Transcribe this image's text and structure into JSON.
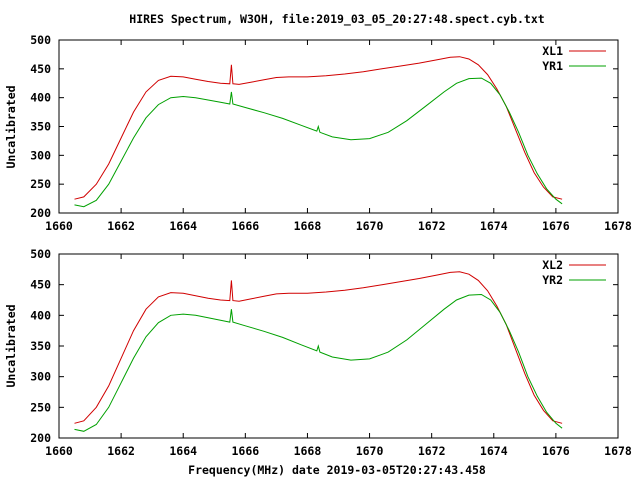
{
  "figure": {
    "title": "HIRES Spectrum, W3OH, file:2019_03_05_20:27:48.spect.cyb.txt",
    "xlabel": "Frequency(MHz) date 2019-03-05T20:27:43.458",
    "colors": {
      "xl": "#d00000",
      "yr": "#00a000"
    }
  },
  "chart_data": [
    {
      "type": "line",
      "ylabel": "Uncalibrated",
      "xlim": [
        1660,
        1678
      ],
      "ylim": [
        200,
        500
      ],
      "xticks": [
        "1660",
        "1662",
        "1664",
        "1666",
        "1668",
        "1670",
        "1672",
        "1674",
        "1676",
        "1678"
      ],
      "yticks": [
        "200",
        "250",
        "300",
        "350",
        "400",
        "450",
        "500"
      ],
      "legend_position": "top-right",
      "series": [
        {
          "name": "XL1",
          "x": [
            1660.5,
            1660.8,
            1661.2,
            1661.6,
            1662.0,
            1662.4,
            1662.8,
            1663.2,
            1663.6,
            1664.0,
            1664.4,
            1664.8,
            1665.2,
            1665.5,
            1665.55,
            1665.6,
            1665.8,
            1666.2,
            1666.6,
            1667.0,
            1667.4,
            1668.0,
            1668.6,
            1669.2,
            1669.8,
            1670.4,
            1671.0,
            1671.6,
            1672.2,
            1672.6,
            1672.9,
            1673.2,
            1673.5,
            1673.8,
            1674.1,
            1674.4,
            1674.7,
            1675.0,
            1675.3,
            1675.6,
            1675.9,
            1676.2
          ],
          "values": [
            224,
            228,
            250,
            285,
            330,
            375,
            410,
            430,
            437,
            436,
            432,
            428,
            425,
            424,
            457,
            424,
            423,
            427,
            431,
            435,
            436,
            436,
            438,
            441,
            445,
            450,
            455,
            460,
            466,
            470,
            471,
            467,
            457,
            440,
            415,
            385,
            345,
            305,
            270,
            245,
            228,
            224
          ]
        },
        {
          "name": "YR1",
          "x": [
            1660.5,
            1660.8,
            1661.2,
            1661.6,
            1662.0,
            1662.4,
            1662.8,
            1663.2,
            1663.6,
            1664.0,
            1664.4,
            1664.8,
            1665.2,
            1665.5,
            1665.55,
            1665.6,
            1666.0,
            1666.6,
            1667.2,
            1667.8,
            1668.3,
            1668.35,
            1668.4,
            1668.8,
            1669.4,
            1670.0,
            1670.6,
            1671.2,
            1671.8,
            1672.4,
            1672.8,
            1673.2,
            1673.6,
            1673.9,
            1674.2,
            1674.5,
            1674.8,
            1675.1,
            1675.4,
            1675.7,
            1676.0,
            1676.2
          ],
          "values": [
            214,
            211,
            222,
            250,
            290,
            330,
            365,
            388,
            400,
            402,
            400,
            396,
            392,
            389,
            410,
            389,
            383,
            374,
            364,
            352,
            342,
            350,
            340,
            332,
            327,
            329,
            340,
            360,
            385,
            410,
            425,
            433,
            434,
            425,
            405,
            375,
            340,
            300,
            268,
            242,
            224,
            216
          ]
        }
      ]
    },
    {
      "type": "line",
      "ylabel": "Uncalibrated",
      "xlim": [
        1660,
        1678
      ],
      "ylim": [
        200,
        500
      ],
      "xticks": [
        "1660",
        "1662",
        "1664",
        "1666",
        "1668",
        "1670",
        "1672",
        "1674",
        "1676",
        "1678"
      ],
      "yticks": [
        "200",
        "250",
        "300",
        "350",
        "400",
        "450",
        "500"
      ],
      "legend_position": "top-right",
      "series": [
        {
          "name": "XL2",
          "x": [
            1660.5,
            1660.8,
            1661.2,
            1661.6,
            1662.0,
            1662.4,
            1662.8,
            1663.2,
            1663.6,
            1664.0,
            1664.4,
            1664.8,
            1665.2,
            1665.5,
            1665.55,
            1665.6,
            1665.8,
            1666.2,
            1666.6,
            1667.0,
            1667.4,
            1668.0,
            1668.6,
            1669.2,
            1669.8,
            1670.4,
            1671.0,
            1671.6,
            1672.2,
            1672.6,
            1672.9,
            1673.2,
            1673.5,
            1673.8,
            1674.1,
            1674.4,
            1674.7,
            1675.0,
            1675.3,
            1675.6,
            1675.9,
            1676.2
          ],
          "values": [
            224,
            228,
            250,
            285,
            330,
            375,
            410,
            430,
            437,
            436,
            432,
            428,
            425,
            424,
            457,
            424,
            423,
            427,
            431,
            435,
            436,
            436,
            438,
            441,
            445,
            450,
            455,
            460,
            466,
            470,
            471,
            467,
            457,
            440,
            415,
            385,
            345,
            305,
            270,
            245,
            228,
            224
          ]
        },
        {
          "name": "YR2",
          "x": [
            1660.5,
            1660.8,
            1661.2,
            1661.6,
            1662.0,
            1662.4,
            1662.8,
            1663.2,
            1663.6,
            1664.0,
            1664.4,
            1664.8,
            1665.2,
            1665.5,
            1665.55,
            1665.6,
            1666.0,
            1666.6,
            1667.2,
            1667.8,
            1668.3,
            1668.35,
            1668.4,
            1668.8,
            1669.4,
            1670.0,
            1670.6,
            1671.2,
            1671.8,
            1672.4,
            1672.8,
            1673.2,
            1673.6,
            1673.9,
            1674.2,
            1674.5,
            1674.8,
            1675.1,
            1675.4,
            1675.7,
            1676.0,
            1676.2
          ],
          "values": [
            214,
            211,
            222,
            250,
            290,
            330,
            365,
            388,
            400,
            402,
            400,
            396,
            392,
            389,
            410,
            389,
            383,
            374,
            364,
            352,
            342,
            350,
            340,
            332,
            327,
            329,
            340,
            360,
            385,
            410,
            425,
            433,
            434,
            425,
            405,
            375,
            340,
            300,
            268,
            242,
            224,
            216
          ]
        }
      ]
    }
  ]
}
